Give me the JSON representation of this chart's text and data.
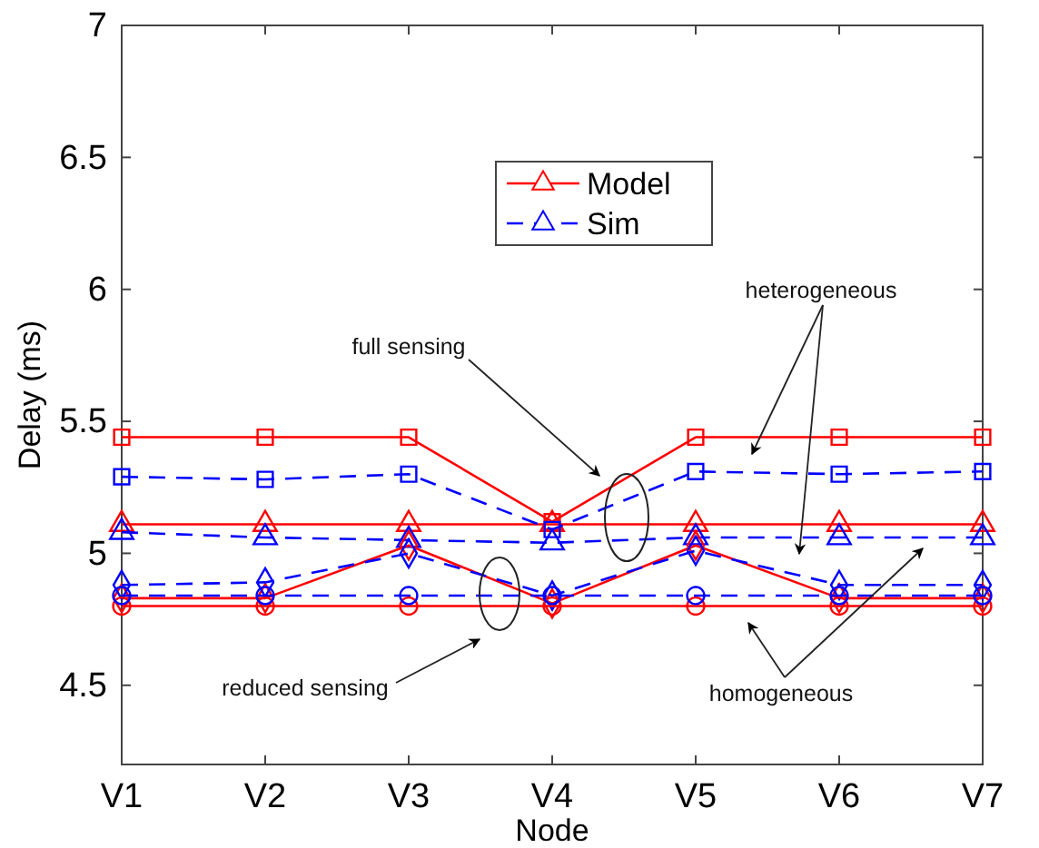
{
  "chart_data": {
    "type": "line",
    "xlabel": "Node",
    "ylabel": "Delay (ms)",
    "categories": [
      "V1",
      "V2",
      "V3",
      "V4",
      "V5",
      "V6",
      "V7"
    ],
    "ylim": [
      4.2,
      7
    ],
    "yticks": [
      4.5,
      5,
      5.5,
      6,
      6.5,
      7
    ],
    "grid": false,
    "legend": "top",
    "series": [
      {
        "name": "Model",
        "color": "#ff0000",
        "marker": "triangle",
        "line_style": "solid",
        "values": [
          5.11,
          5.11,
          5.11,
          5.11,
          5.11,
          5.11,
          5.11
        ]
      },
      {
        "name": "Sim",
        "color": "#0000ff",
        "marker": "triangle",
        "line_style": "dashed",
        "values": [
          5.08,
          5.06,
          5.05,
          5.04,
          5.06,
          5.06,
          5.06
        ]
      },
      {
        "color": "#ff0000",
        "marker": "square",
        "line_style": "solid",
        "values": [
          5.44,
          5.44,
          5.44,
          5.12,
          5.44,
          5.44,
          5.44
        ]
      },
      {
        "color": "#0000ff",
        "marker": "square",
        "line_style": "dashed",
        "values": [
          5.29,
          5.28,
          5.3,
          5.09,
          5.31,
          5.3,
          5.31
        ]
      },
      {
        "color": "#ff0000",
        "marker": "diamond",
        "line_style": "solid",
        "values": [
          4.83,
          4.83,
          5.03,
          4.81,
          5.03,
          4.83,
          4.83
        ]
      },
      {
        "color": "#0000ff",
        "marker": "diamond",
        "line_style": "dashed",
        "values": [
          4.88,
          4.89,
          5.0,
          4.84,
          5.01,
          4.88,
          4.88
        ]
      },
      {
        "color": "#ff0000",
        "marker": "circle",
        "line_style": "solid",
        "values": [
          4.8,
          4.8,
          4.8,
          4.8,
          4.8,
          4.8,
          4.8
        ]
      },
      {
        "color": "#0000ff",
        "marker": "circle",
        "line_style": "dashed",
        "values": [
          4.84,
          4.84,
          4.84,
          4.84,
          4.84,
          4.84,
          4.84
        ]
      }
    ],
    "annotations": [
      "full sensing",
      "reduced sensing",
      "heterogeneous",
      "homogeneous"
    ]
  }
}
